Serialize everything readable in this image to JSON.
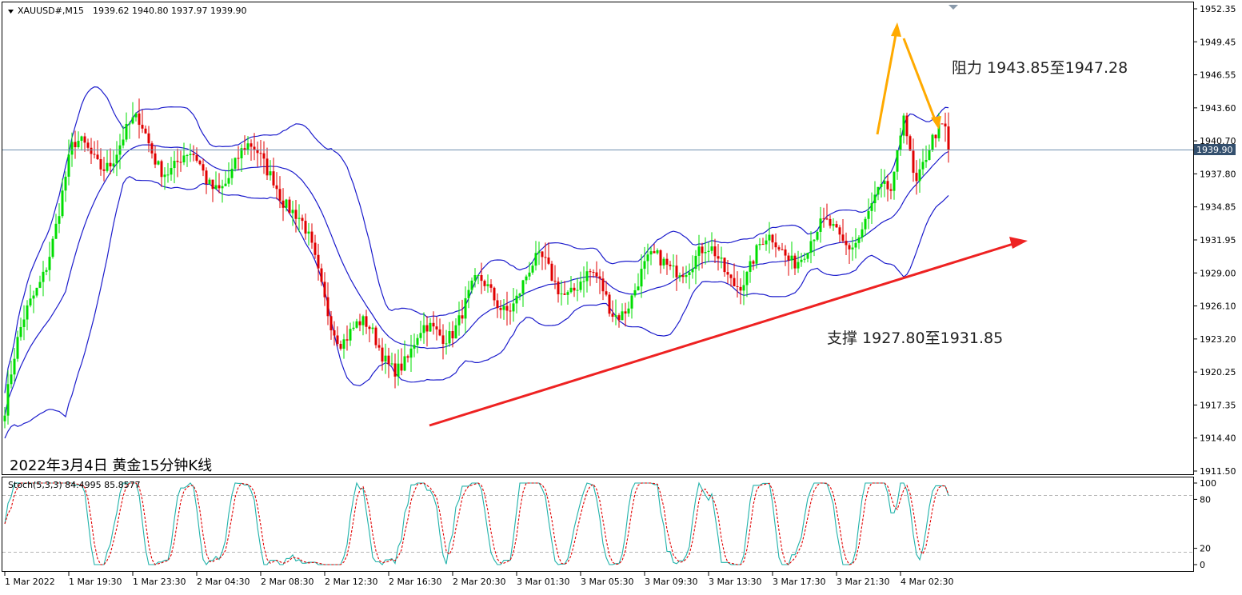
{
  "header": {
    "symbol": "XAUUSD#,M15",
    "ohlc": "1939.62 1940.80 1937.97 1939.90"
  },
  "price_axis": {
    "labels": [
      "1952.35",
      "1949.45",
      "1946.55",
      "1943.60",
      "1940.70",
      "1937.80",
      "1934.85",
      "1931.95",
      "1929.00",
      "1926.10",
      "1923.20",
      "1920.25",
      "1917.35",
      "1914.40",
      "1911.50"
    ],
    "current_price": "1939.90"
  },
  "time_axis": {
    "labels": [
      "1 Mar 2022",
      "1 Mar 19:30",
      "1 Mar 23:30",
      "2 Mar 04:30",
      "2 Mar 08:30",
      "2 Mar 12:30",
      "2 Mar 16:30",
      "2 Mar 20:30",
      "3 Mar 01:30",
      "3 Mar 05:30",
      "3 Mar 09:30",
      "3 Mar 13:30",
      "3 Mar 17:30",
      "3 Mar 21:30",
      "4 Mar 02:30"
    ]
  },
  "stoch": {
    "label": "Stoch(5,3,3) 84.4995 85.8577",
    "axis_labels": [
      "100",
      "80",
      "20",
      "0"
    ]
  },
  "annotations": {
    "resistance": "阻力 1943.85至1947.28",
    "support": "支撑 1927.80至1931.85",
    "caption": "2022年3月4日 黄金15分钟K线"
  },
  "colors": {
    "bull": "#00dd00",
    "bear": "#e00000",
    "bollinger": "#1c1ccc",
    "trend_arrow": "#ee2222",
    "peak_arrow": "#ffaa00",
    "stoch_main": "#20b2aa",
    "stoch_signal": "#e00000"
  },
  "chart_data": {
    "type": "candlestick",
    "symbol": "XAUUSD",
    "timeframe": "M15",
    "ylim": [
      1911.5,
      1952.35
    ],
    "last_close": 1939.9,
    "price_path": [
      {
        "t": "1 Mar 2022",
        "price": 1917.0
      },
      {
        "t": "1 Mar 19:30",
        "price": 1938.0
      },
      {
        "t": "1 Mar 23:30",
        "price": 1942.5
      },
      {
        "t": "2 Mar 04:30",
        "price": 1936.5
      },
      {
        "t": "2 Mar 08:30",
        "price": 1938.5
      },
      {
        "t": "2 Mar 12:30",
        "price": 1925.0
      },
      {
        "t": "2 Mar 16:30",
        "price": 1920.0
      },
      {
        "t": "2 Mar 20:30",
        "price": 1927.5
      },
      {
        "t": "3 Mar 01:30",
        "price": 1929.5
      },
      {
        "t": "3 Mar 05:30",
        "price": 1925.0
      },
      {
        "t": "3 Mar 09:30",
        "price": 1932.0
      },
      {
        "t": "3 Mar 13:30",
        "price": 1929.0
      },
      {
        "t": "3 Mar 17:30",
        "price": 1931.0
      },
      {
        "t": "3 Mar 21:30",
        "price": 1936.0
      },
      {
        "t": "4 Mar 02:30",
        "price": 1939.9
      }
    ],
    "annotated_high": 1950.5,
    "annotated_low": 1915.5,
    "resistance_zone": [
      1943.85,
      1947.28
    ],
    "support_zone": [
      1927.8,
      1931.85
    ],
    "stochastic": {
      "k": 84.4995,
      "d": 85.8577,
      "levels": [
        20,
        80
      ],
      "ylim": [
        0,
        100
      ]
    }
  }
}
